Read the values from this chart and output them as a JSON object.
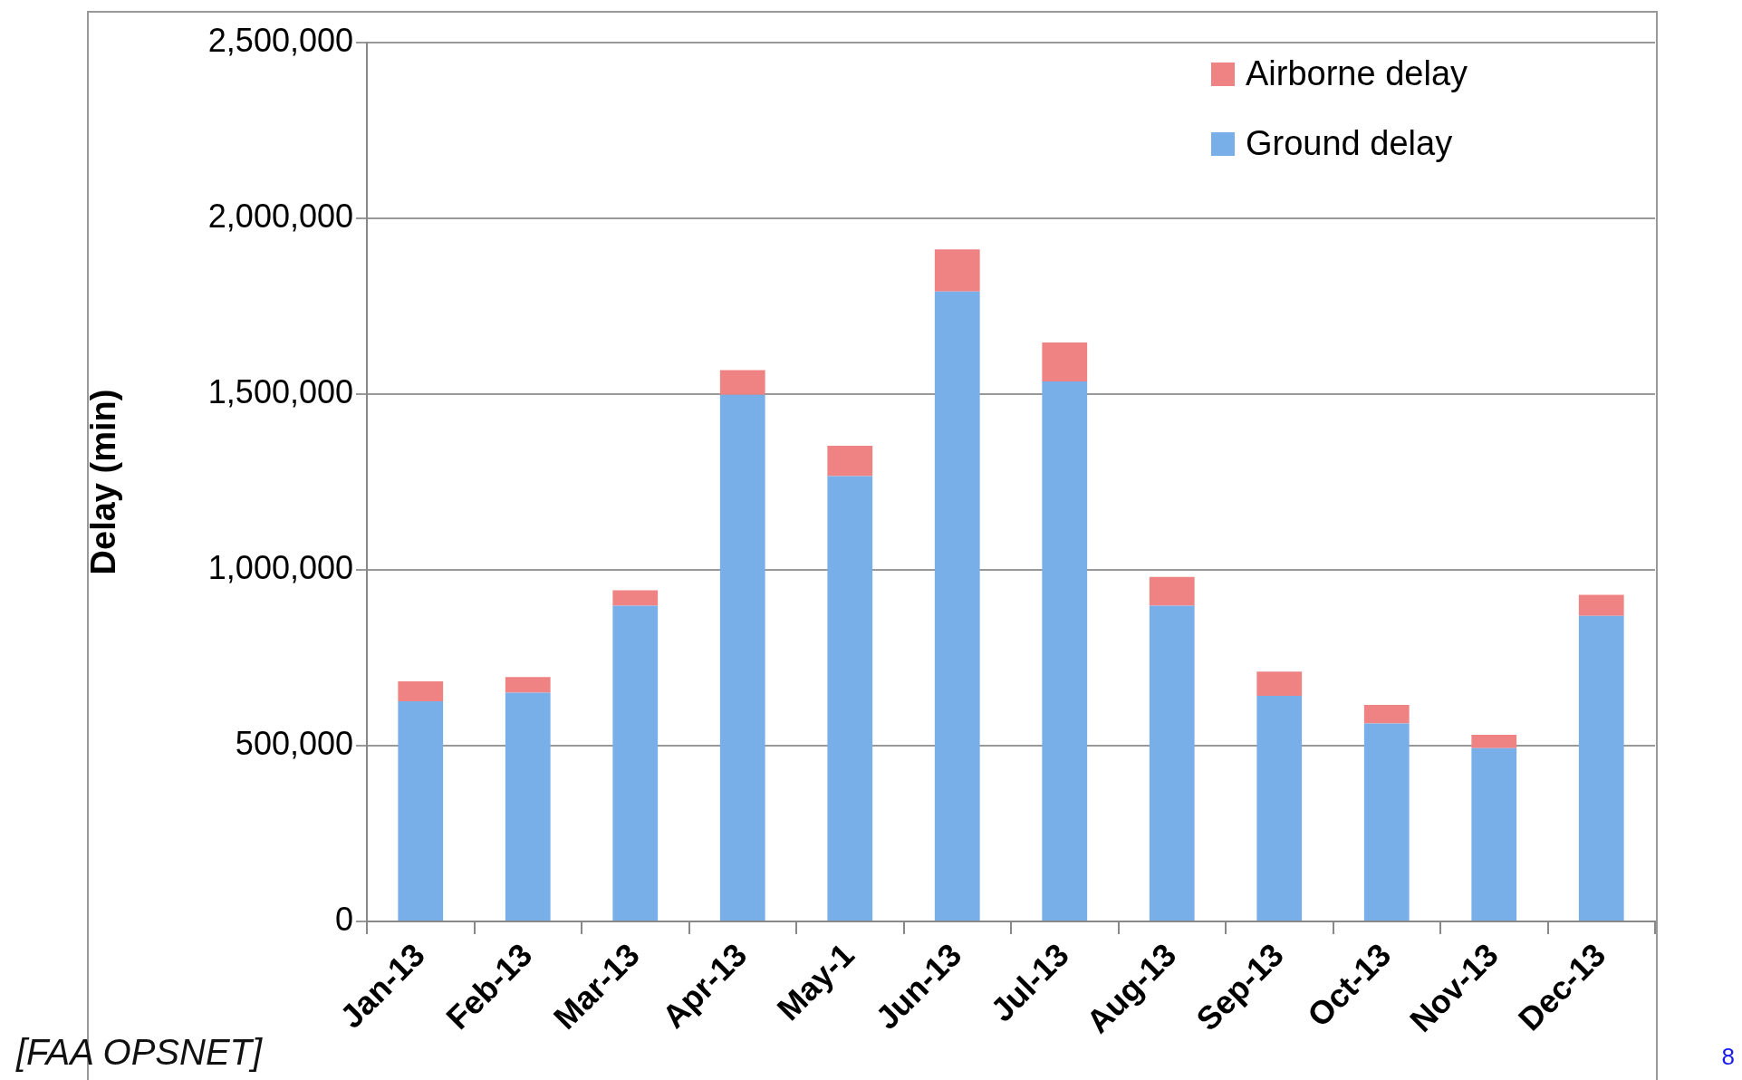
{
  "chart_data": {
    "type": "bar",
    "stacked": true,
    "ylabel": "Delay (min)",
    "categories": [
      "Jan-13",
      "Feb-13",
      "Mar-13",
      "Apr-13",
      "May-1",
      "Jun-13",
      "Jul-13",
      "Aug-13",
      "Sep-13",
      "Oct-13",
      "Nov-13",
      "Dec-13"
    ],
    "series": [
      {
        "name": "Ground delay",
        "color": "#79afe9",
        "values": [
          626000,
          651000,
          898000,
          1498000,
          1267000,
          1792000,
          1536000,
          898000,
          642000,
          563000,
          493000,
          869000
        ]
      },
      {
        "name": "Airborne delay",
        "color": "#ef8383",
        "values": [
          57000,
          44000,
          44000,
          70000,
          86000,
          120000,
          111000,
          82000,
          69000,
          53000,
          38000,
          60000
        ]
      }
    ],
    "ylim": [
      0,
      2500000
    ],
    "yticks": [
      0,
      {
        "value": 500000,
        "label": "500,000"
      },
      {
        "value": 1000000,
        "label": "1,000,000"
      },
      {
        "value": 1500000,
        "label": "1,500,000"
      },
      {
        "value": 2000000,
        "label": "2,000,000"
      },
      {
        "value": 2500000,
        "label": "2,500,000"
      }
    ],
    "grid": "y",
    "legend": "top right",
    "annotations": [
      "[FAA OPSNET]",
      "8"
    ]
  }
}
